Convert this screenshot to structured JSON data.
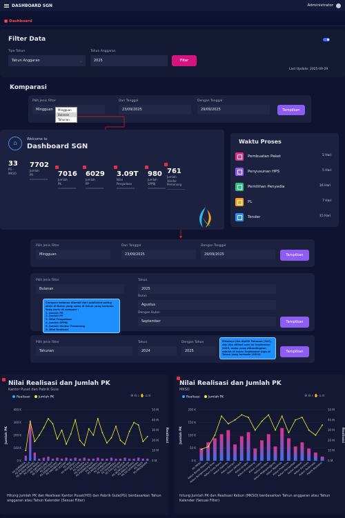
{
  "topbar": {
    "title": "DASHBOARD SGN",
    "user": "Administrator"
  },
  "breadcrumb": "Dashboard",
  "filter": {
    "title": "Filter Data",
    "tipe_label": "Tipe Tahun",
    "tipe_value": "Tahun Anggaran",
    "tahun_label": "Tahun Anggaran",
    "tahun_value": "2025",
    "button": "Filter",
    "last_update": "Last Update: 2025-09-29"
  },
  "komparasi": {
    "title": "Komparasi",
    "jenis_label": "Pilih Jenis Filter",
    "jenis_value": "Mingguan",
    "dropdown_options": [
      "Mingguan",
      "Bulanan",
      "Tahunan"
    ],
    "dari_label": "Dari Tanggal",
    "dari_value": "23/09/2025",
    "dengan_label": "Dengan Tanggal",
    "dengan_value": "29/09/2025",
    "button": "Tampilkan"
  },
  "welcome": {
    "small": "Welcome to",
    "title": "Dashboard SGN",
    "stats": [
      {
        "num": "33",
        "label": "PG - \nMKSO"
      },
      {
        "num": "7702",
        "label": "Jumlah\nPR"
      },
      {
        "num": "7016",
        "label": "Jumlah\nPK"
      },
      {
        "num": "6029",
        "label": "Jumlah\nPP"
      },
      {
        "num": "3.09T",
        "label": "Nilai\nPengadaan"
      },
      {
        "num": "980",
        "label": "Jumlah\nSPPBJ"
      },
      {
        "num": "761",
        "label": "Jumlah\nVendor\nPemenang"
      }
    ]
  },
  "waktu": {
    "title": "Waktu Proses",
    "items": [
      {
        "label": "Pembuatan Paket",
        "value": "5 Hari",
        "color": "#e0338a"
      },
      {
        "label": "Penyusunan HPS",
        "value": "5 Hari",
        "color": "#8e5cf0"
      },
      {
        "label": "Pemilihan Penyedia",
        "value": "16 Hari",
        "color": "#2ec27e"
      },
      {
        "label": "PL",
        "value": "7 Hari",
        "color": "#f5a623"
      },
      {
        "label": "Tender",
        "value": "15 Hari",
        "color": "#2f8fe8"
      }
    ]
  },
  "filters_detail": {
    "row1": {
      "jenis_label": "Pilih Jenis Filter",
      "jenis_value": "Mingguan",
      "dari_label": "Dari Tanggal",
      "dari_value": "23/09/2025",
      "dengan_label": "Dengan Tanggal",
      "dengan_value": "29/09/2025",
      "button": "Tampilkan"
    },
    "row2": {
      "jenis_label": "Pilih Jenis Filter",
      "jenis_value": "Bulanan",
      "tahun_label": "Tahun",
      "tahun_value": "2025",
      "bulan_label": "Bulan",
      "bulan_value": "Agustus",
      "dengan_label": "Dengan Bulan",
      "dengan_value": "September",
      "button": "Tampilkan",
      "tooltip": "Compare bulanan diambil dari published paling akhir di Bulan yang sama di tahun yang berbeda\nYang perlu di compare :\n1. Jumlah PR\n2. Jumlah PP\n3. Nilai Pengadaan\n4. Jumlah SPPBJ\n5. Jumlah Vendor Pemenang\n6. Nilai Realisasi"
    },
    "row3": {
      "jenis_label": "Pilih Jenis Filter",
      "jenis_value": "Tahunan",
      "tahun_label": "Tahun",
      "tahun_value": "2024",
      "dengan_label": "Dengan Tahun",
      "dengan_value": "2025",
      "button": "Tampilkan",
      "tooltip": "Misalnya jika dipilih Tahunan (YoY), dan jika dilihat saat ini September 2025, maka yang dibandingkan adalah di bulan September juga di Tahun yang berbeda (2024)"
    }
  },
  "chart1_text": {
    "title": "Nilai Realisasi dan Jumlah PK",
    "subtitle": "Kantor Pusat dan Pabrik Gula",
    "foot": "Hitung Jumlah PK dan Realisasi Kantor Pusat(HO) dan Pabrik Gula(PG) berdasarkan Tahun anggaran atau Tahun Kalender (Sesuai Filter)",
    "legend_a": "Realisasi",
    "legend_b": "Jumlah PK",
    "yleft": "Jumlah PK",
    "yright": "Realisasi"
  },
  "chart2_text": {
    "title": "Nilai Realisasi dan Jumlah PK",
    "subtitle": "MKSO",
    "foot": "hitung Jumlah PK dan Realisasi Kebun (MKSO) berdasarkan Tahun anggaran atau Tahun Kalender (Sesuai Filter)",
    "legend_a": "Realisasi",
    "legend_b": "Jumlah PK",
    "yleft": "Jumlah PK",
    "yright": "Realisasi"
  },
  "chart_data": [
    {
      "type": "bar",
      "title": "Nilai Realisasi dan Jumlah PK",
      "subtitle": "Kantor Pusat dan Pabrik Gula",
      "ylabel": "Jumlah PK",
      "y2label": "Realisasi",
      "ylim": [
        0,
        400
      ],
      "y2lim": [
        0,
        50
      ],
      "yticks": [
        "0 K",
        "100 K",
        "200 K",
        "300 K",
        "400 K"
      ],
      "y2ticks": [
        "0 M",
        "10 M",
        "20 M",
        "30 M",
        "40 M",
        "50 M"
      ],
      "categories": [
        "HO SURABAYA",
        "PG ASEMBAGUS",
        "PG BUNGA MAYANG",
        "PG CINTA MANIS",
        "PG DJATIROTO",
        "PG GEMPOLKREP",
        "PG JATITUJUH",
        "PG KEBON AGUNG",
        "PG KREMBOONG",
        "PG LESTARI",
        "PG MEJI",
        "PG NGADIREJO",
        "PG OLEAN",
        "PG PANGKA",
        "PG PESANTREN",
        "PG POERWODADIE",
        "PG RAJAWALI",
        "PG REDJOSARIE",
        "PG SEMBORO",
        "PG SOEDHONO",
        "PG TASIKMADU",
        "PG TOELANGAN",
        "PG TJOEKIR",
        "PG WONOLANGAN",
        "PG KWALA MADU",
        "PG SEI SEMAYANG",
        "PG PAKIS",
        "PG PRADJEKAN"
      ],
      "series": [
        {
          "name": "Realisasi",
          "axis": "right",
          "values": [
            5,
            36,
            8,
            2,
            3,
            4,
            2,
            3,
            2,
            3,
            2,
            3,
            2,
            3,
            2,
            2,
            3,
            2,
            2,
            3,
            2,
            2,
            3,
            2,
            2,
            3,
            2,
            2
          ]
        },
        {
          "name": "Jumlah PK",
          "axis": "left",
          "values": [
            80,
            310,
            150,
            200,
            260,
            330,
            290,
            170,
            240,
            130,
            210,
            320,
            160,
            120,
            250,
            200,
            330,
            220,
            140,
            180,
            270,
            160,
            130,
            230,
            300,
            280,
            150,
            190
          ]
        }
      ]
    },
    {
      "type": "bar",
      "title": "Nilai Realisasi dan Jumlah PK",
      "subtitle": "MKSO",
      "ylabel": "Jumlah PK",
      "y2label": "Realisasi",
      "ylim": [
        0,
        200
      ],
      "y2lim": [
        0,
        50
      ],
      "yticks": [
        "0 K",
        "50 K",
        "100 K",
        "150 K",
        "200 K"
      ],
      "y2ticks": [
        "0 M",
        "10 M",
        "20 M",
        "30 M",
        "40 M",
        "50 M"
      ],
      "categories": [
        "HO MKSO",
        "Kebun Bunga Mayang",
        "Kebun Bungamayang Ruas",
        "Kebun Cinta Manis",
        "Kebun Djatiroto",
        "Kebun Gempol",
        "Kebun Jatitujuh",
        "Kebun Jengkol",
        "Kebun Kremboong",
        "Kebun Lestari",
        "Kebun Meritjan",
        "Kebun Modjopanggung",
        "Kebun Ngadirejo",
        "Kebun Pesantren",
        "Kebun Poerwodadi",
        "Kebun Rajawali",
        "Kebun Semboro",
        "Kebun Tasikmadu",
        "Pabrik Bioetanol"
      ],
      "series": [
        {
          "name": "Realisasi",
          "axis": "right",
          "values": [
            12,
            18,
            22,
            26,
            30,
            16,
            24,
            28,
            12,
            20,
            26,
            14,
            32,
            22,
            14,
            18,
            12,
            8,
            4
          ]
        },
        {
          "name": "Jumlah PK",
          "axis": "left",
          "values": [
            45,
            55,
            100,
            175,
            145,
            160,
            180,
            170,
            120,
            155,
            180,
            120,
            175,
            110,
            160,
            170,
            120,
            100,
            140
          ]
        }
      ]
    }
  ]
}
